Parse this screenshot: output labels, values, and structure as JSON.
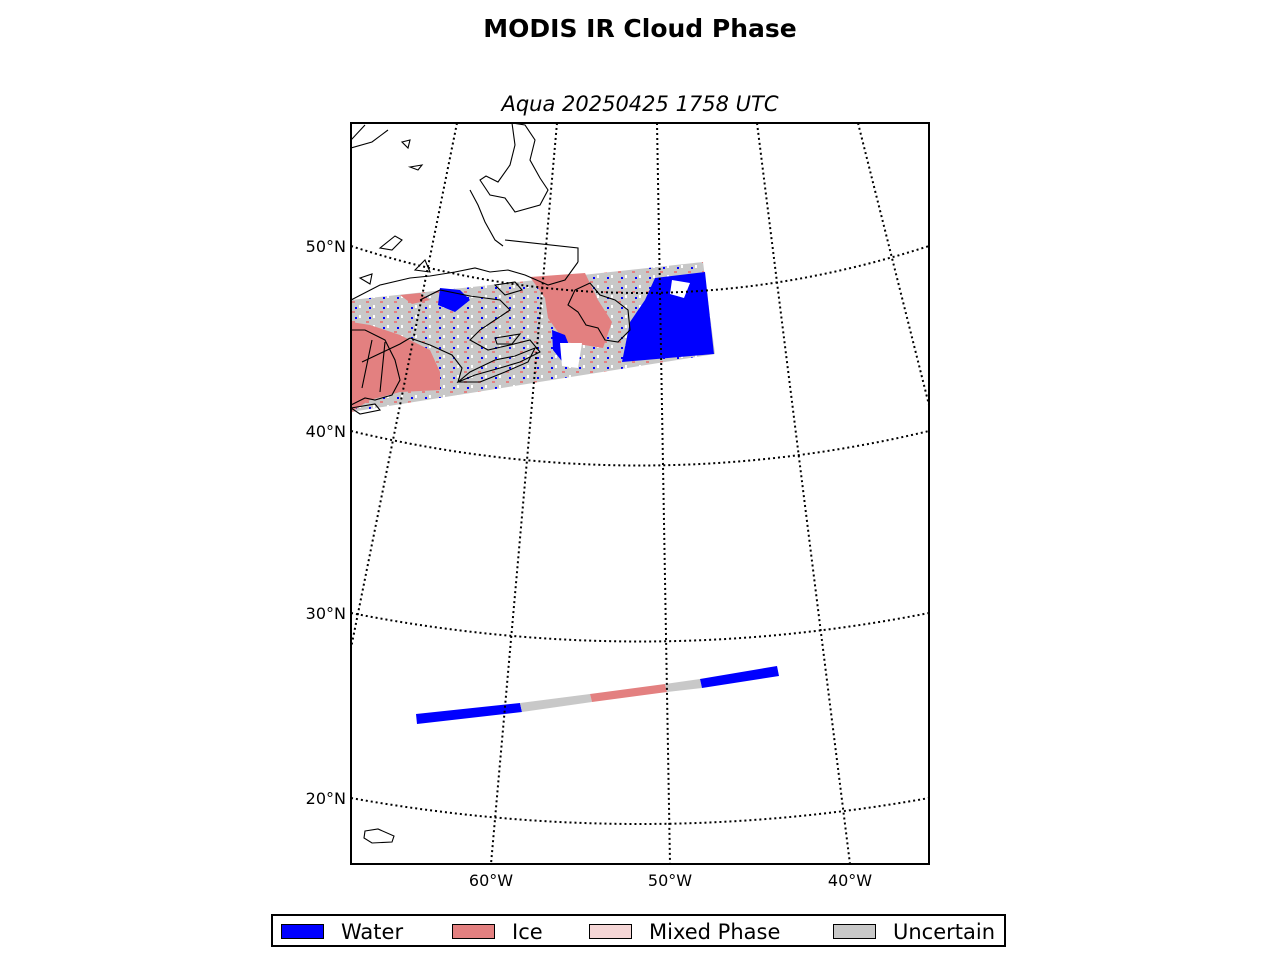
{
  "title": "MODIS IR Cloud Phase",
  "subtitle": "Aqua 20250425 1758 UTC",
  "map": {
    "projection": "conic",
    "parallels": [
      "50°N",
      "40°N",
      "30°N",
      "20°N"
    ],
    "meridians": [
      "60°W",
      "50°W",
      "40°W"
    ],
    "gridlines": "dotted"
  },
  "colors": {
    "water": "#0000ff",
    "ice": "#e38080",
    "mixed_phase": "#f5d6d6",
    "uncertain": "#c8c8c8",
    "coastline": "#000000"
  },
  "legend": {
    "items": [
      {
        "label": "Water",
        "color": "#0000ff"
      },
      {
        "label": "Ice",
        "color": "#e38080"
      },
      {
        "label": "Mixed Phase",
        "color": "#f5d6d6"
      },
      {
        "label": "Uncertain",
        "color": "#c8c8c8"
      }
    ]
  }
}
